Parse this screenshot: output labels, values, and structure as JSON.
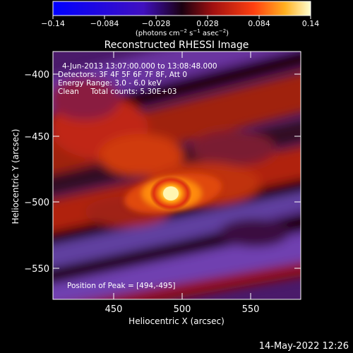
{
  "colorbar": {
    "ticks": [
      "−0.14",
      "−0.084",
      "−0.028",
      "0.028",
      "0.084",
      "0.14"
    ],
    "units_prefix": "(photons cm",
    "units_exp1": "−2",
    "units_mid": " s",
    "units_exp2": "−1",
    "units_mid2": " asec",
    "units_exp3": "−2",
    "units_suffix": ")"
  },
  "figure": {
    "title": "Reconstructed RHESSI Image",
    "info_lines": [
      "4-Jun-2013 13:07:00.000 to 13:08:48.000",
      "Detectors: 3F 4F 5F 6F 7F 8F, Att 0",
      "Energy Range: 3.0 - 6.0 keV",
      "Clean     Total counts: 5.30E+03"
    ],
    "peak_label": "Position of Peak = [494,-495]",
    "xlabel": "Heliocentric X (arcsec)",
    "ylabel": "Heliocentric Y (arcsec)",
    "x_ticks": [
      "450",
      "500",
      "550"
    ],
    "y_ticks": [
      "−400",
      "−450",
      "−500",
      "−550"
    ],
    "timestamp": "14-May-2022 12:26"
  },
  "colors": {
    "background": "#000000",
    "peak": "#fff6a0",
    "core": "#ff9a10",
    "warm": "#c02010",
    "cool": "#6a36a0"
  }
}
